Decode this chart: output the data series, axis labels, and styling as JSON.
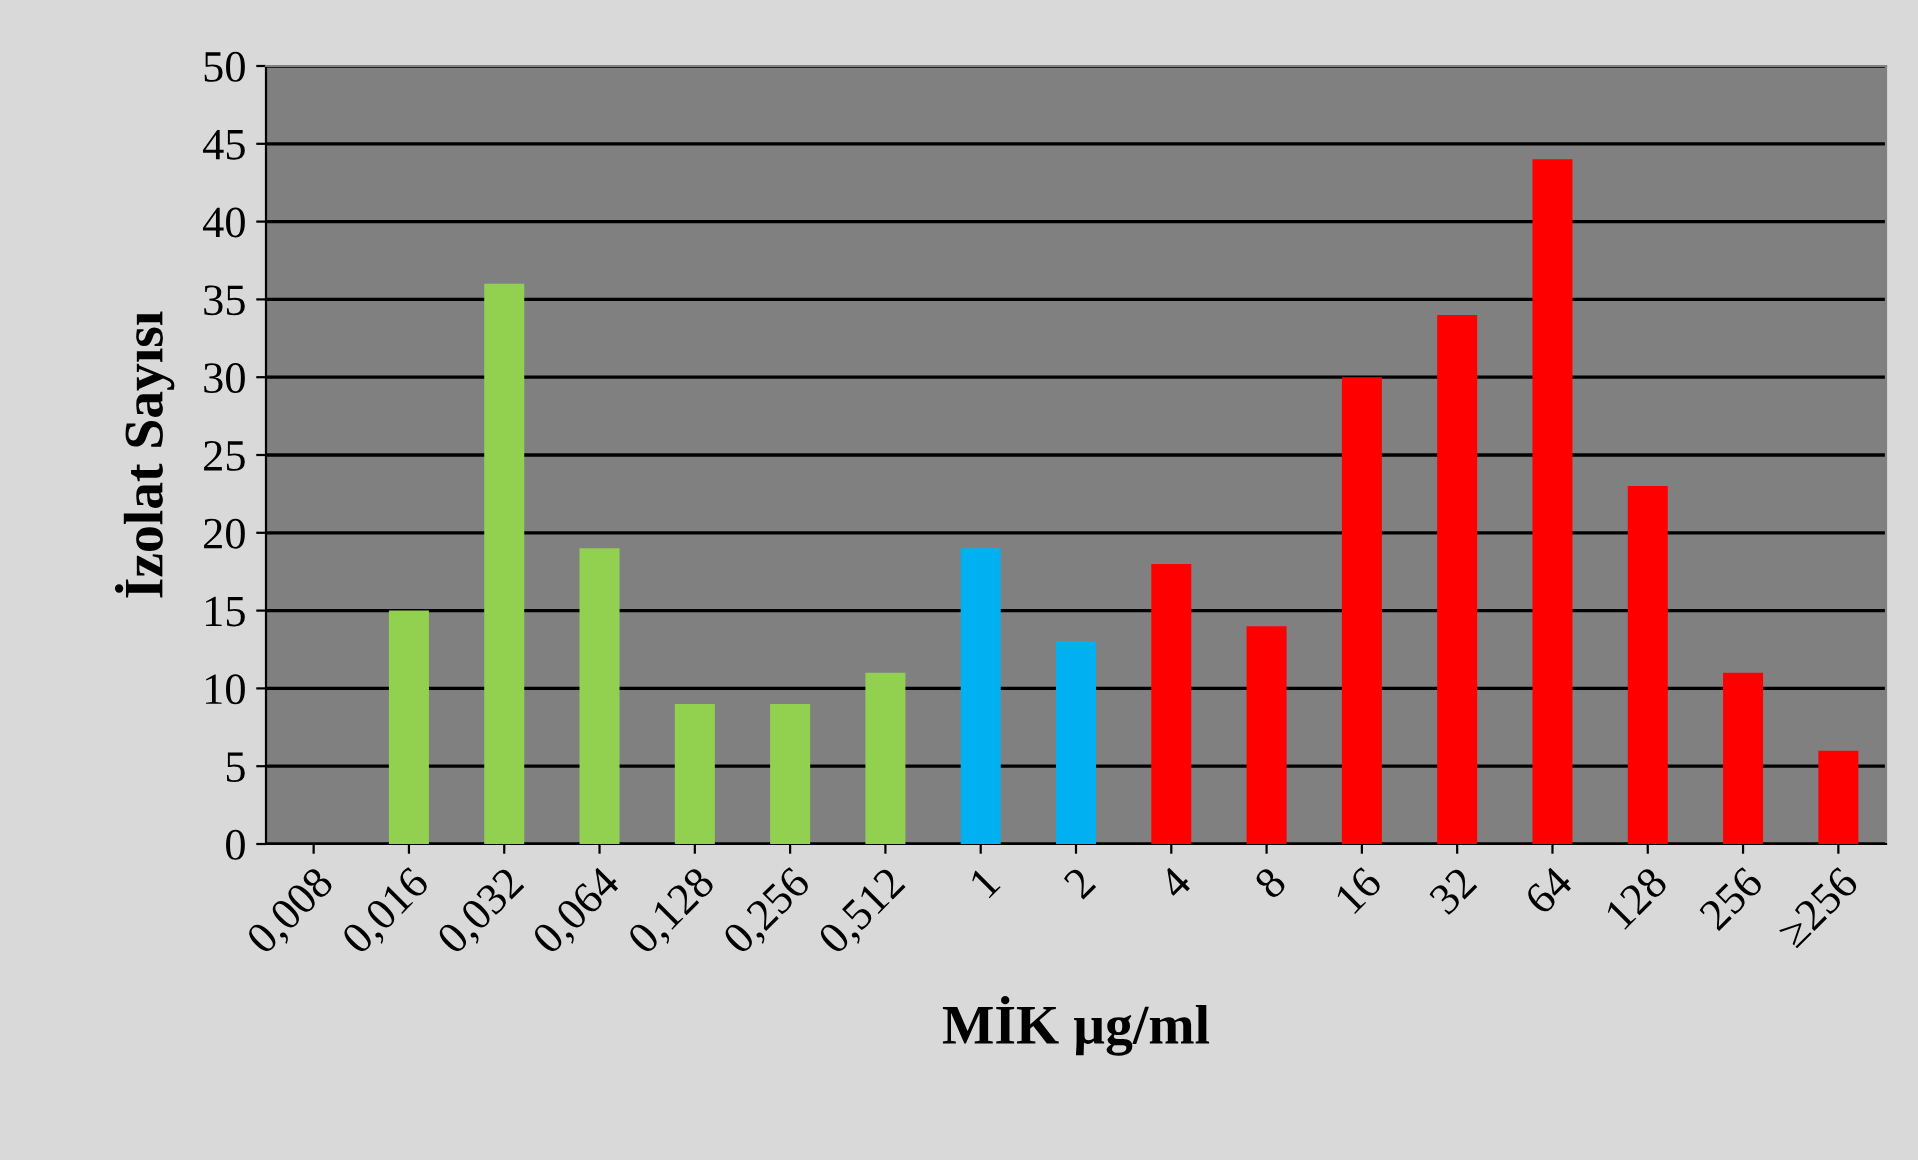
{
  "chart_data": {
    "type": "bar",
    "xlabel": "MİK µg/ml",
    "ylabel": "İzolat Sayısı",
    "categories": [
      "0,008",
      "0,016",
      "0,032",
      "0,064",
      "0,128",
      "0,256",
      "0,512",
      "1",
      "2",
      "4",
      "8",
      "16",
      "32",
      "64",
      "128",
      "256",
      "≥256"
    ],
    "values": [
      0,
      15,
      36,
      19,
      9,
      9,
      11,
      19,
      13,
      18,
      14,
      30,
      34,
      44,
      23,
      11,
      6
    ],
    "colors": [
      "#92d050",
      "#92d050",
      "#92d050",
      "#92d050",
      "#92d050",
      "#92d050",
      "#92d050",
      "#00b0f0",
      "#00b0f0",
      "#ff0000",
      "#ff0000",
      "#ff0000",
      "#ff0000",
      "#ff0000",
      "#ff0000",
      "#ff0000",
      "#ff0000"
    ],
    "ylim": [
      0,
      50
    ],
    "yticks": [
      0,
      5,
      10,
      15,
      20,
      25,
      30,
      35,
      40,
      45,
      50
    ],
    "grid": "y",
    "legend": false
  }
}
